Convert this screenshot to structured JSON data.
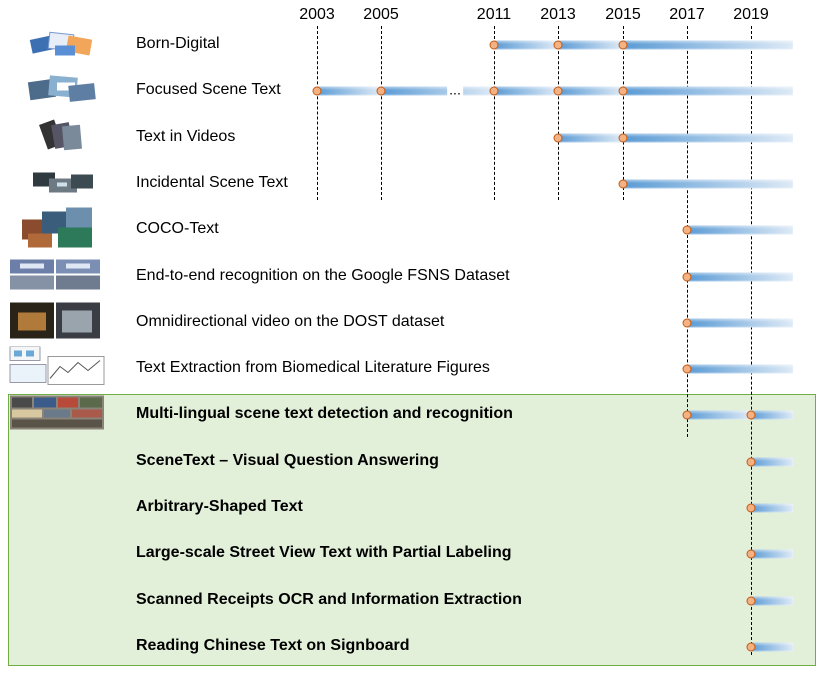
{
  "timeline": {
    "years": [
      "2003",
      "2005",
      "2011",
      "2013",
      "2015",
      "2017",
      "2019"
    ],
    "gap_marker": "...",
    "rows": [
      {
        "label": "Born-Digital",
        "bold": false,
        "editions": [
          "2011",
          "2013",
          "2015"
        ],
        "icon": "born-digital-thumbnail"
      },
      {
        "label": "Focused Scene Text",
        "bold": false,
        "editions": [
          "2003",
          "2005",
          "2011",
          "2013",
          "2015"
        ],
        "icon": "focused-scene-text-thumbnail"
      },
      {
        "label": "Text in Videos",
        "bold": false,
        "editions": [
          "2013",
          "2015"
        ],
        "icon": "text-in-videos-thumbnail"
      },
      {
        "label": "Incidental Scene Text",
        "bold": false,
        "editions": [
          "2015"
        ],
        "icon": "incidental-scene-text-thumbnail"
      },
      {
        "label": "COCO-Text",
        "bold": false,
        "editions": [
          "2017"
        ],
        "icon": "coco-text-thumbnail"
      },
      {
        "label": "End-to-end recognition on the Google FSNS Dataset",
        "bold": false,
        "editions": [
          "2017"
        ],
        "icon": "fsns-thumbnail"
      },
      {
        "label": "Omnidirectional video on the DOST dataset",
        "bold": false,
        "editions": [
          "2017"
        ],
        "icon": "dost-thumbnail"
      },
      {
        "label": "Text Extraction from Biomedical Literature Figures",
        "bold": false,
        "editions": [
          "2017"
        ],
        "icon": "biomedical-figures-thumbnail"
      },
      {
        "label": "Multi-lingual scene text detection and recognition",
        "bold": true,
        "editions": [
          "2017",
          "2019"
        ],
        "icon": "multi-lingual-thumbnail"
      },
      {
        "label": "SceneText – Visual Question Answering",
        "bold": true,
        "editions": [
          "2019"
        ],
        "icon": ""
      },
      {
        "label": "Arbitrary-Shaped Text",
        "bold": true,
        "editions": [
          "2019"
        ],
        "icon": ""
      },
      {
        "label": "Large-scale Street View Text with Partial Labeling",
        "bold": true,
        "editions": [
          "2019"
        ],
        "icon": ""
      },
      {
        "label": "Scanned Receipts OCR and Information Extraction",
        "bold": true,
        "editions": [
          "2019"
        ],
        "icon": ""
      },
      {
        "label": "Reading Chinese Text on Signboard",
        "bold": true,
        "editions": [
          "2019"
        ],
        "icon": ""
      }
    ]
  },
  "colors": {
    "bar_blue": "#5b9bd5",
    "dot_orange": "#f4b183",
    "dot_border": "#c55a11",
    "highlight_green": "#e2efd9",
    "highlight_border": "#70ad47"
  }
}
